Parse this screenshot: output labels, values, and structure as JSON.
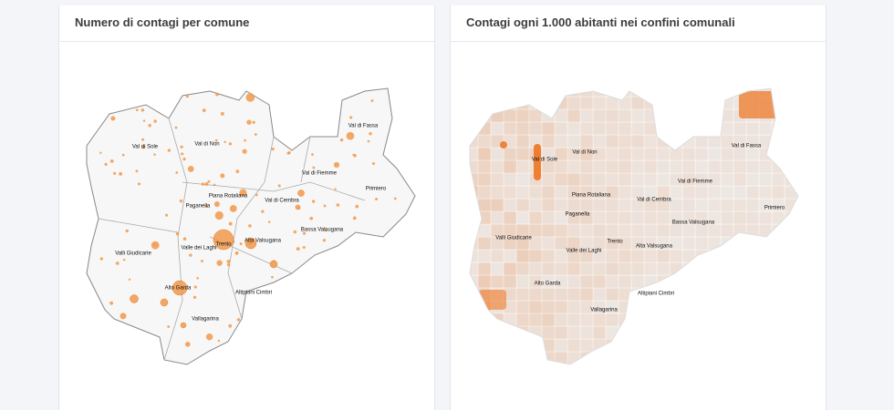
{
  "panels": [
    {
      "title": "Numero di contagi per comune",
      "labels": [
        "Val di Sole",
        "Val di Non",
        "Val di Fassa",
        "Val di Fiemme",
        "Primiero",
        "Piana Rotaliana",
        "Val di Cembra",
        "Paganella",
        "Bassa Valsugana",
        "Valli Giudicarie",
        "Valle dei Laghi",
        "Trento",
        "Alta Valsugana",
        "Altipiani Cimbri",
        "Alto Garda",
        "Vallagarina"
      ]
    },
    {
      "title": "Contagi ogni 1.000 abitanti nei confini comunali",
      "labels": [
        "Val di Sole",
        "Val di Non",
        "Val di Fassa",
        "Val di Fiemme",
        "Primiero",
        "Piana Rotaliana",
        "Val di Cembra",
        "Paganella",
        "Bassa Valsugana",
        "Valli Giudicarie",
        "Valle dei Laghi",
        "Trento",
        "Alta Valsugana",
        "Altipiani Cimbri",
        "Alto Garda",
        "Vallagarina"
      ]
    }
  ]
}
